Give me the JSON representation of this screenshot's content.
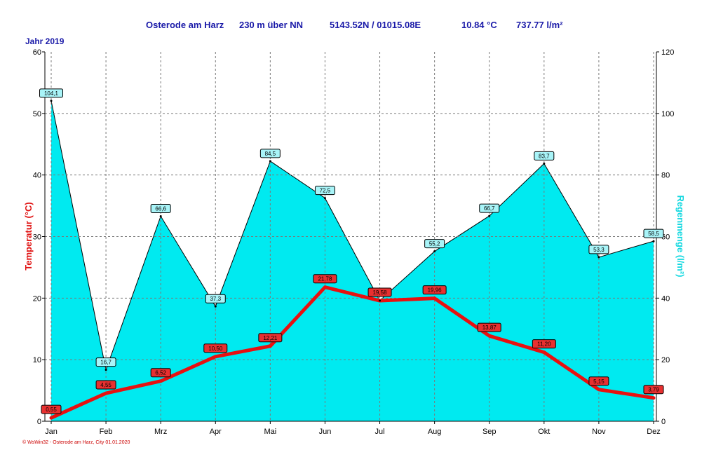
{
  "header": {
    "station": "Osterode am Harz",
    "altitude": "230 m über NN",
    "coords": "5143.52N / 01015.08E",
    "mean_temp": "10.84 °C",
    "precip_total": "737.77 l/m²",
    "year": "Jahr  2019"
  },
  "footer": {
    "copyright": "© WsWin32  -  Osterode am Harz, City  01.01.2020"
  },
  "chart_data": {
    "type": "line+area",
    "categories": [
      "Jan",
      "Feb",
      "Mrz",
      "Apr",
      "Mai",
      "Jun",
      "Jul",
      "Aug",
      "Sep",
      "Okt",
      "Nov",
      "Dez"
    ],
    "series": [
      {
        "name": "Regenmenge",
        "axis": "right",
        "kind": "area",
        "values": [
          104.1,
          16.7,
          66.6,
          37.3,
          84.5,
          72.5,
          39.2,
          55.2,
          66.7,
          83.7,
          53.3,
          58.5
        ],
        "labels": [
          "104,1",
          "16,7",
          "66,6",
          "37,3",
          "84,5",
          "72,5",
          "",
          "55,2",
          "66,7",
          "83,7",
          "53,3",
          "58,5"
        ],
        "color": "#00eaf0"
      },
      {
        "name": "Temperatur",
        "axis": "left",
        "kind": "line",
        "values": [
          0.55,
          4.55,
          6.52,
          10.5,
          12.21,
          21.78,
          19.58,
          19.96,
          13.87,
          11.2,
          5.15,
          3.79
        ],
        "labels": [
          "0,55",
          "4,55",
          "6,52",
          "10,50",
          "12,21",
          "21,78",
          "19,58",
          "19,96",
          "13,87",
          "11,20",
          "5,15",
          "3,79"
        ],
        "color": "#e81010"
      }
    ],
    "ylabel_left": "Temperatur  (°C)",
    "ylabel_right": "Regenmenge   (l/m²)",
    "ylim_left": [
      0,
      60
    ],
    "ylim_right": [
      0,
      120
    ],
    "yticks_left": [
      "0",
      "10",
      "20",
      "30",
      "40",
      "50",
      "60"
    ],
    "yticks_right": [
      "0",
      "20",
      "40",
      "60",
      "80",
      "100",
      "120"
    ],
    "grid": true
  }
}
